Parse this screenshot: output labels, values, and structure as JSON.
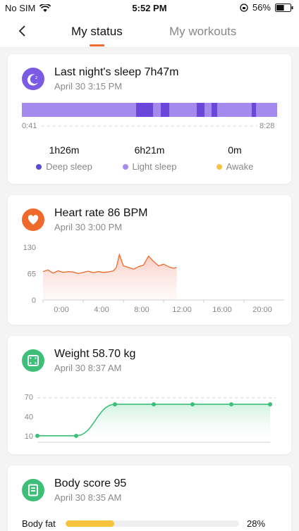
{
  "status_bar": {
    "carrier": "No SIM",
    "time": "5:52 PM",
    "battery": "56%",
    "battery_level": 0.56
  },
  "nav": {
    "tabs": [
      {
        "label": "My status"
      },
      {
        "label": "My workouts"
      }
    ]
  },
  "sleep": {
    "title": "Last night's sleep 7h47m",
    "subtitle": "April 30 3:15 PM",
    "start_label": "0:41",
    "end_label": "8:28",
    "stats": [
      {
        "value": "1h26m",
        "label": "Deep sleep",
        "color": "#5a4bd4"
      },
      {
        "value": "6h21m",
        "label": "Light sleep",
        "color": "#a78bf0"
      },
      {
        "value": "0m",
        "label": "Awake",
        "color": "#f6c344"
      }
    ]
  },
  "heart": {
    "title": "Heart rate 86  BPM",
    "subtitle": "April 30 3:00 PM",
    "y_ticks": [
      "130",
      "65",
      "0"
    ],
    "x_ticks": [
      "0:00",
      "4:00",
      "8:00",
      "12:00",
      "16:00",
      "20:00"
    ]
  },
  "weight": {
    "title": "Weight 58.70 kg",
    "subtitle": "April 30 8:37 AM",
    "y_ticks": [
      "70",
      "40",
      "10"
    ]
  },
  "body": {
    "title": "Body score 95",
    "subtitle": "April 30 8:35 AM",
    "fat_label": "Body fat",
    "fat_percent": "28%",
    "fat_value": 28
  },
  "colors": {
    "accent": "#f06a2b",
    "sleep": "#7b5be4",
    "heart": "#ef6a2a",
    "weight": "#3dbf79",
    "body": "#3dbf79"
  },
  "chart_data": [
    {
      "type": "area",
      "title": "Heart rate 86  BPM",
      "xlabel": "",
      "ylabel": "",
      "x_ticks": [
        "0:00",
        "4:00",
        "8:00",
        "12:00",
        "16:00",
        "20:00"
      ],
      "ylim": [
        0,
        130
      ],
      "x_hours": [
        0,
        0.5,
        1,
        1.5,
        2,
        2.5,
        3,
        3.5,
        4,
        4.5,
        5,
        5.5,
        6,
        6.5,
        7,
        7.3,
        7.6,
        8,
        8.5,
        9,
        9.5,
        10,
        10.5,
        11,
        11.5,
        12,
        12.5,
        13,
        13.3
      ],
      "values": [
        70,
        74,
        66,
        72,
        68,
        70,
        69,
        65,
        68,
        71,
        67,
        70,
        68,
        69,
        72,
        80,
        112,
        84,
        80,
        76,
        82,
        86,
        108,
        95,
        84,
        88,
        82,
        78,
        80
      ],
      "grid": false
    },
    {
      "type": "line",
      "title": "Weight 58.70 kg",
      "y_ticks": [
        70,
        40,
        10
      ],
      "ylim": [
        0,
        80
      ],
      "values": [
        10,
        10,
        58.7,
        58.7,
        58.7,
        58.7,
        58.7
      ],
      "grid": false
    }
  ]
}
